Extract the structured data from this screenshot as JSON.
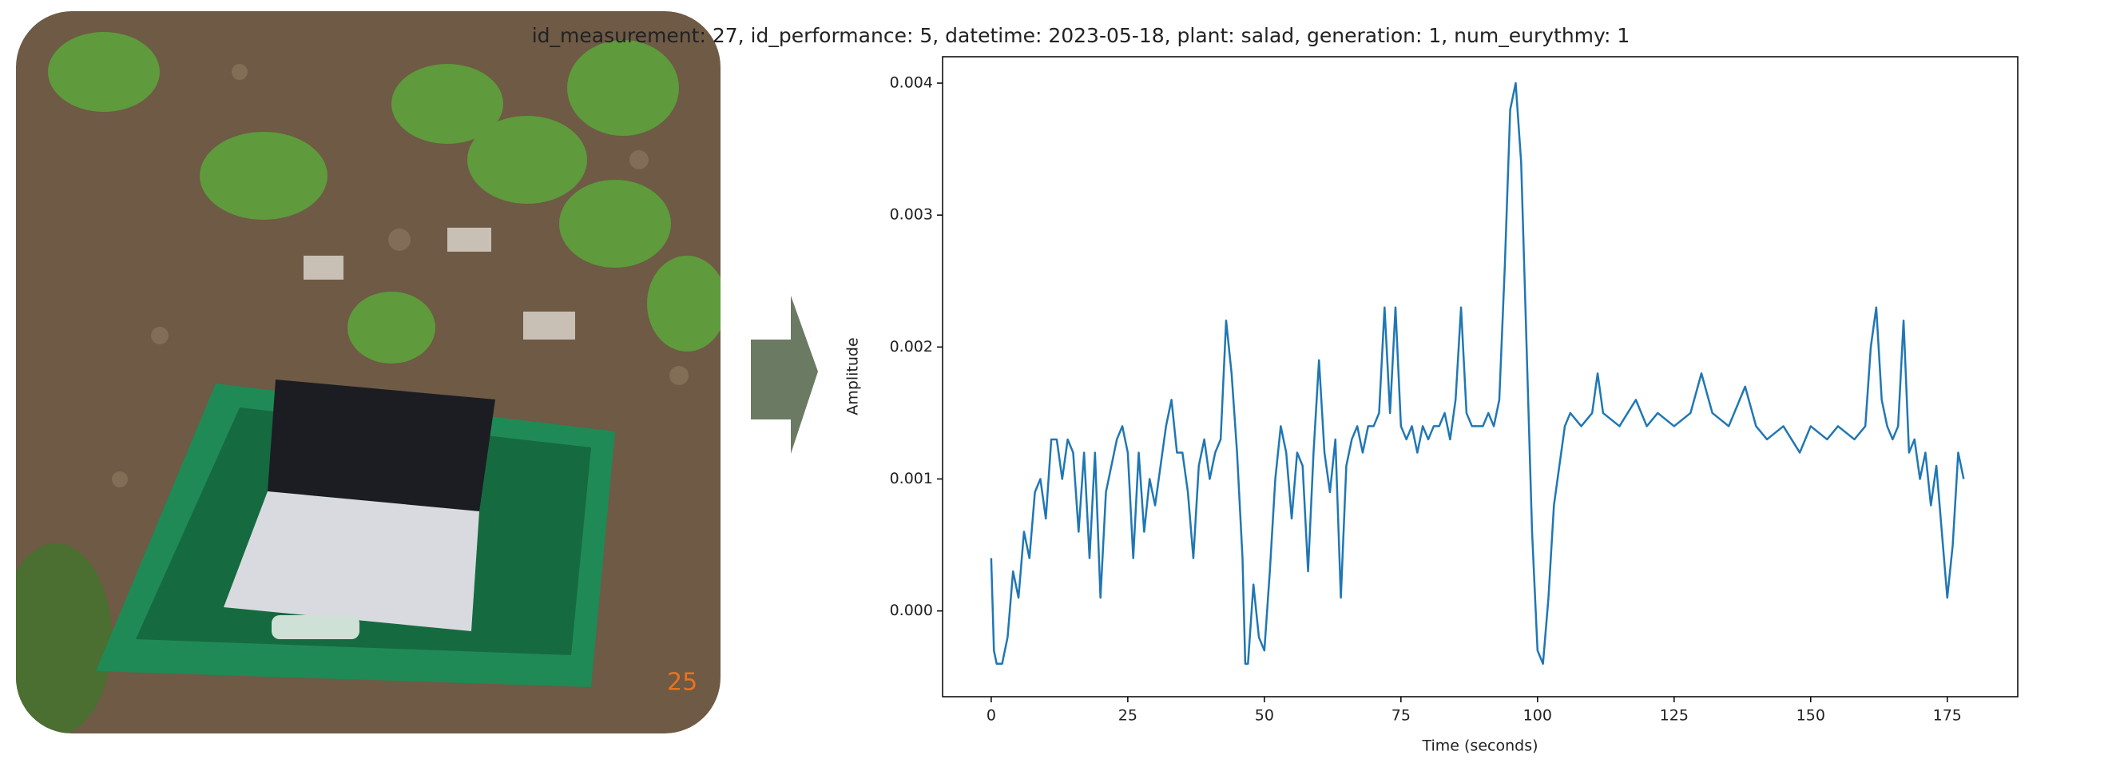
{
  "photo_stamp": "25",
  "chart_data": {
    "type": "line",
    "title": "id_measurement: 27, id_performance: 5, datetime: 2023-05-18, plant: salad, generation: 1, num_eurythmy: 1",
    "xlabel": "Time (seconds)",
    "ylabel": "Amplitude",
    "xlim": [
      -8.9,
      187.9
    ],
    "ylim": [
      -0.00065,
      0.0042
    ],
    "xticks": [
      0,
      25,
      50,
      75,
      100,
      125,
      150,
      175
    ],
    "yticks": [
      {
        "value": 0,
        "label": "0.000"
      },
      0.001,
      0.002,
      0.003,
      0.004
    ],
    "grid": false,
    "series": [
      {
        "color": "#1f77b4",
        "x": [
          0,
          0.5,
          1,
          2,
          3,
          4,
          5,
          6,
          7,
          8,
          9,
          10,
          11,
          12,
          13,
          14,
          15,
          16,
          17,
          18,
          19,
          20,
          21,
          23,
          24,
          25,
          26,
          27,
          28,
          29,
          30,
          31,
          32,
          33,
          34,
          35,
          36,
          37,
          38,
          39,
          40,
          41,
          42,
          43,
          44,
          45,
          46,
          46.5,
          47,
          48,
          49,
          50,
          51,
          52,
          53,
          54,
          55,
          56,
          57,
          58,
          59,
          60,
          61,
          62,
          63,
          64,
          65,
          66,
          67,
          68,
          69,
          70,
          71,
          72,
          73,
          74,
          75,
          76,
          77,
          78,
          79,
          80,
          81,
          82,
          83,
          84,
          85,
          86,
          87,
          88,
          89,
          90,
          91,
          92,
          93,
          94,
          95,
          96,
          97,
          98,
          99,
          100,
          101,
          102,
          103,
          104,
          105,
          106,
          108,
          110,
          111,
          112,
          115,
          118,
          120,
          122,
          125,
          128,
          130,
          132,
          135,
          138,
          140,
          142,
          145,
          148,
          150,
          153,
          155,
          158,
          160,
          161,
          162,
          163,
          164,
          165,
          166,
          167,
          168,
          169,
          170,
          171,
          172,
          173,
          174,
          175,
          176,
          177,
          178
        ],
        "values": [
          0.0004,
          -0.0003,
          -0.0004,
          -0.0004,
          -0.0002,
          0.0003,
          0.0001,
          0.0006,
          0.0004,
          0.0009,
          0.001,
          0.0007,
          0.0013,
          0.0013,
          0.001,
          0.0013,
          0.0012,
          0.0006,
          0.0012,
          0.0004,
          0.0012,
          0.0001,
          0.0009,
          0.0013,
          0.0014,
          0.0012,
          0.0004,
          0.0012,
          0.0006,
          0.001,
          0.0008,
          0.0011,
          0.0014,
          0.0016,
          0.0012,
          0.0012,
          0.0009,
          0.0004,
          0.0011,
          0.0013,
          0.001,
          0.0012,
          0.0013,
          0.0022,
          0.0018,
          0.0012,
          0.0004,
          -0.0004,
          -0.0004,
          0.0002,
          -0.0002,
          -0.0003,
          0.0003,
          0.001,
          0.0014,
          0.0012,
          0.0007,
          0.0012,
          0.0011,
          0.0003,
          0.0012,
          0.0019,
          0.0012,
          0.0009,
          0.0013,
          0.0001,
          0.0011,
          0.0013,
          0.0014,
          0.0012,
          0.0014,
          0.0014,
          0.0015,
          0.0023,
          0.0015,
          0.0023,
          0.0014,
          0.0013,
          0.0014,
          0.0012,
          0.0014,
          0.0013,
          0.0014,
          0.0014,
          0.0015,
          0.0013,
          0.0016,
          0.0023,
          0.0015,
          0.0014,
          0.0014,
          0.0014,
          0.0015,
          0.0014,
          0.0016,
          0.0026,
          0.0038,
          0.004,
          0.0034,
          0.002,
          0.0006,
          -0.0003,
          -0.0004,
          0.0001,
          0.0008,
          0.0011,
          0.0014,
          0.0015,
          0.0014,
          0.0015,
          0.0018,
          0.0015,
          0.0014,
          0.0016,
          0.0014,
          0.0015,
          0.0014,
          0.0015,
          0.0018,
          0.0015,
          0.0014,
          0.0017,
          0.0014,
          0.0013,
          0.0014,
          0.0012,
          0.0014,
          0.0013,
          0.0014,
          0.0013,
          0.0014,
          0.002,
          0.0023,
          0.0016,
          0.0014,
          0.0013,
          0.0014,
          0.0022,
          0.0012,
          0.0013,
          0.001,
          0.0012,
          0.0008,
          0.0011,
          0.0006,
          0.0001,
          0.0005,
          0.0012,
          0.001
        ]
      }
    ]
  }
}
